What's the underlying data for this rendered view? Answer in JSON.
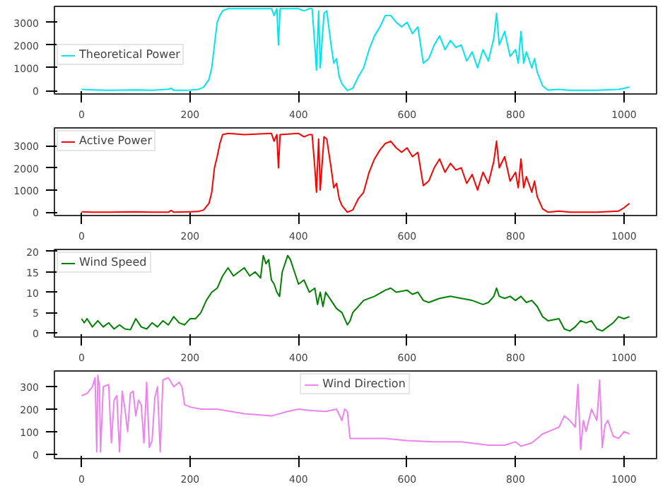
{
  "chart_data": [
    {
      "type": "line",
      "legend": "left",
      "grid": false,
      "xlim": [
        -50,
        1060
      ],
      "ylim": [
        -150,
        3700
      ],
      "xticks": [
        0,
        200,
        400,
        600,
        800,
        1000
      ],
      "yticks": [
        0,
        1000,
        2000,
        3000
      ],
      "x": [
        0,
        20,
        50,
        100,
        130,
        160,
        165,
        170,
        200,
        215,
        225,
        235,
        240,
        245,
        250,
        255,
        260,
        270,
        300,
        350,
        355,
        360,
        363,
        366,
        400,
        410,
        420,
        425,
        430,
        433,
        437,
        440,
        447,
        452,
        460,
        465,
        470,
        475,
        480,
        490,
        500,
        510,
        520,
        530,
        540,
        550,
        560,
        570,
        580,
        590,
        600,
        610,
        620,
        630,
        640,
        650,
        660,
        670,
        680,
        690,
        700,
        710,
        720,
        730,
        740,
        750,
        760,
        765,
        770,
        780,
        790,
        800,
        805,
        810,
        815,
        820,
        830,
        835,
        840,
        850,
        860,
        880,
        900,
        950,
        990,
        1000,
        1010
      ],
      "series": [
        {
          "name": "Theoretical Power",
          "color": "#00e5ee",
          "values": [
            50,
            30,
            10,
            30,
            10,
            60,
            100,
            10,
            20,
            50,
            150,
            500,
            1000,
            2000,
            3000,
            3300,
            3500,
            3600,
            3600,
            3600,
            3300,
            3600,
            2000,
            3600,
            3600,
            3500,
            3600,
            3600,
            2000,
            900,
            3500,
            1000,
            3400,
            3500,
            2000,
            1200,
            1400,
            600,
            300,
            0,
            100,
            600,
            1000,
            1800,
            2400,
            2800,
            3300,
            3300,
            3000,
            2800,
            3000,
            2500,
            2800,
            1200,
            1400,
            2000,
            2400,
            1800,
            2200,
            1900,
            2000,
            1300,
            1700,
            1000,
            1800,
            1300,
            2300,
            3400,
            2000,
            2600,
            1500,
            1800,
            1200,
            2600,
            1200,
            1700,
            1000,
            1400,
            800,
            200,
            20,
            50,
            10,
            10,
            50,
            100,
            150
          ]
        }
      ]
    },
    {
      "type": "line",
      "legend": "top left",
      "grid": false,
      "xlim": [
        -50,
        1060
      ],
      "ylim": [
        -150,
        3800
      ],
      "xticks": [
        0,
        200,
        400,
        600,
        800,
        1000
      ],
      "yticks": [
        0,
        1000,
        2000,
        3000
      ],
      "x": [
        0,
        20,
        50,
        100,
        130,
        160,
        165,
        170,
        200,
        215,
        225,
        235,
        240,
        245,
        250,
        255,
        260,
        270,
        300,
        350,
        355,
        360,
        363,
        366,
        400,
        410,
        420,
        425,
        430,
        433,
        437,
        440,
        447,
        452,
        460,
        465,
        470,
        475,
        480,
        490,
        500,
        510,
        520,
        530,
        540,
        550,
        560,
        570,
        580,
        590,
        600,
        610,
        620,
        630,
        640,
        650,
        660,
        670,
        680,
        690,
        700,
        710,
        720,
        730,
        740,
        750,
        760,
        765,
        770,
        780,
        790,
        800,
        805,
        810,
        815,
        820,
        830,
        835,
        840,
        850,
        860,
        880,
        900,
        950,
        990,
        1000,
        1010
      ],
      "series": [
        {
          "name": "Active Power",
          "color": "#ff0000",
          "values": [
            20,
            0,
            0,
            20,
            0,
            0,
            80,
            0,
            20,
            30,
            100,
            400,
            900,
            2000,
            2500,
            3100,
            3500,
            3550,
            3500,
            3550,
            3200,
            3500,
            2000,
            3500,
            3550,
            3400,
            3500,
            3500,
            2000,
            900,
            3300,
            1000,
            3400,
            3300,
            2000,
            1100,
            1300,
            600,
            300,
            0,
            100,
            600,
            900,
            1800,
            2400,
            2800,
            3100,
            3200,
            2900,
            2700,
            2900,
            2500,
            2700,
            1200,
            1400,
            2000,
            2400,
            1800,
            2200,
            1900,
            2000,
            1300,
            1700,
            1000,
            1800,
            1300,
            2300,
            3200,
            2000,
            2500,
            1400,
            1800,
            1100,
            2400,
            1100,
            1600,
            900,
            1400,
            700,
            150,
            0,
            50,
            0,
            0,
            50,
            200,
            400
          ]
        }
      ]
    },
    {
      "type": "line",
      "legend": "top left",
      "grid": false,
      "xlim": [
        -50,
        1060
      ],
      "ylim": [
        -1,
        20.5
      ],
      "xticks": [
        0,
        200,
        400,
        600,
        800,
        1000
      ],
      "yticks": [
        0,
        5,
        10,
        15,
        20
      ],
      "x": [
        0,
        5,
        10,
        20,
        30,
        40,
        50,
        60,
        70,
        80,
        90,
        100,
        110,
        120,
        130,
        140,
        150,
        160,
        170,
        180,
        190,
        200,
        210,
        220,
        230,
        240,
        250,
        260,
        270,
        280,
        290,
        300,
        310,
        320,
        330,
        335,
        340,
        345,
        350,
        355,
        360,
        365,
        370,
        380,
        385,
        390,
        400,
        410,
        420,
        430,
        435,
        440,
        445,
        450,
        460,
        470,
        480,
        490,
        495,
        500,
        520,
        540,
        560,
        570,
        580,
        600,
        610,
        620,
        630,
        640,
        660,
        680,
        700,
        720,
        740,
        750,
        760,
        765,
        770,
        780,
        790,
        800,
        810,
        820,
        830,
        840,
        850,
        860,
        880,
        890,
        900,
        910,
        920,
        930,
        940,
        950,
        960,
        980,
        990,
        1000,
        1010
      ],
      "series": [
        {
          "name": "Wind Speed",
          "color": "#008000",
          "values": [
            3.5,
            2.5,
            3.5,
            1.5,
            3,
            1.5,
            2.5,
            1,
            2,
            1,
            0.8,
            3.5,
            1.5,
            1,
            2.5,
            1.5,
            3,
            2,
            4,
            2.5,
            2,
            3.5,
            3.5,
            5,
            8,
            10,
            11,
            14,
            16,
            14,
            15,
            16,
            14,
            15,
            13.5,
            19,
            17,
            18,
            13,
            12,
            10,
            9,
            15,
            19,
            18,
            16,
            12,
            13,
            10,
            11,
            7,
            10,
            6.5,
            10,
            8,
            6,
            5,
            2,
            3,
            5,
            8,
            9,
            10.5,
            11,
            10,
            10.5,
            9.5,
            10,
            8,
            7.5,
            8.5,
            9,
            8.5,
            8,
            7,
            7.5,
            9,
            11,
            9,
            8.5,
            9,
            8,
            9,
            7.5,
            8,
            6.5,
            4,
            3,
            3.5,
            1,
            0.5,
            1.5,
            3,
            2.5,
            3,
            1,
            0.5,
            2.5,
            4,
            3.5,
            4
          ]
        }
      ]
    },
    {
      "type": "line",
      "legend": "top",
      "grid": false,
      "xlim": [
        -50,
        1060
      ],
      "ylim": [
        -20,
        370
      ],
      "xticks": [
        0,
        200,
        400,
        600,
        800,
        1000
      ],
      "yticks": [
        0,
        100,
        200,
        300
      ],
      "x": [
        0,
        10,
        20,
        25,
        28,
        30,
        33,
        35,
        40,
        50,
        55,
        60,
        65,
        70,
        75,
        80,
        85,
        90,
        95,
        100,
        105,
        110,
        115,
        120,
        125,
        130,
        135,
        140,
        145,
        150,
        160,
        170,
        180,
        185,
        190,
        200,
        220,
        250,
        300,
        350,
        380,
        400,
        420,
        450,
        470,
        480,
        485,
        490,
        495,
        520,
        560,
        600,
        650,
        700,
        750,
        780,
        800,
        810,
        830,
        850,
        860,
        880,
        890,
        900,
        910,
        915,
        920,
        925,
        930,
        940,
        950,
        955,
        960,
        965,
        970,
        980,
        990,
        1000,
        1010
      ],
      "series": [
        {
          "name": "Wind Direction",
          "color": "#ee82ee",
          "values": [
            260,
            270,
            300,
            340,
            10,
            350,
            300,
            10,
            300,
            310,
            50,
            240,
            260,
            10,
            280,
            200,
            100,
            270,
            280,
            170,
            240,
            220,
            50,
            320,
            30,
            60,
            250,
            300,
            10,
            330,
            340,
            300,
            320,
            300,
            220,
            210,
            200,
            200,
            180,
            170,
            190,
            200,
            195,
            190,
            200,
            150,
            200,
            190,
            70,
            70,
            70,
            60,
            55,
            55,
            40,
            40,
            55,
            35,
            50,
            90,
            100,
            120,
            170,
            150,
            120,
            310,
            20,
            150,
            100,
            200,
            150,
            330,
            30,
            130,
            150,
            80,
            70,
            100,
            90
          ]
        }
      ]
    }
  ]
}
